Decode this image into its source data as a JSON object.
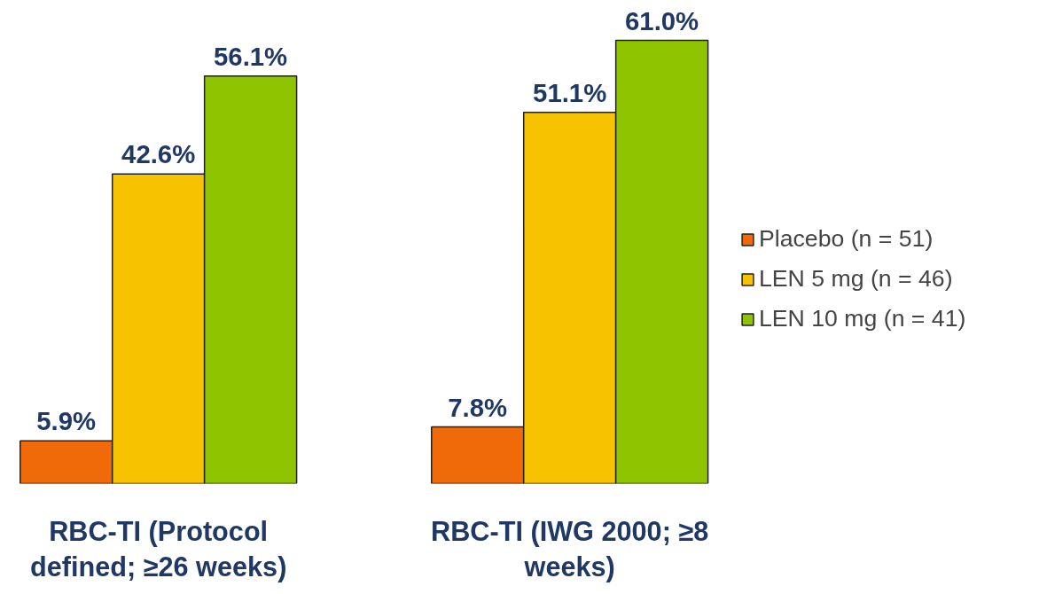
{
  "chart_data": {
    "type": "bar",
    "categories": [
      "RBC-TI (Protocol defined; ≥26 weeks)",
      "RBC-TI (IWG 2000; ≥8 weeks)"
    ],
    "series": [
      {
        "name": "Placebo (n = 51)",
        "color": "#f06a0a",
        "values": [
          5.9,
          7.8
        ],
        "value_labels": [
          "5.9%",
          "7.8%"
        ]
      },
      {
        "name": "LEN 5 mg (n = 46)",
        "color": "#f7c200",
        "values": [
          42.6,
          51.1
        ],
        "value_labels": [
          "42.6%",
          "51.1%"
        ]
      },
      {
        "name": "LEN 10 mg (n = 41)",
        "color": "#8fc400",
        "values": [
          56.1,
          61.0
        ],
        "value_labels": [
          "56.1%",
          "61.0%"
        ]
      }
    ],
    "legend": "right",
    "grid": false
  }
}
